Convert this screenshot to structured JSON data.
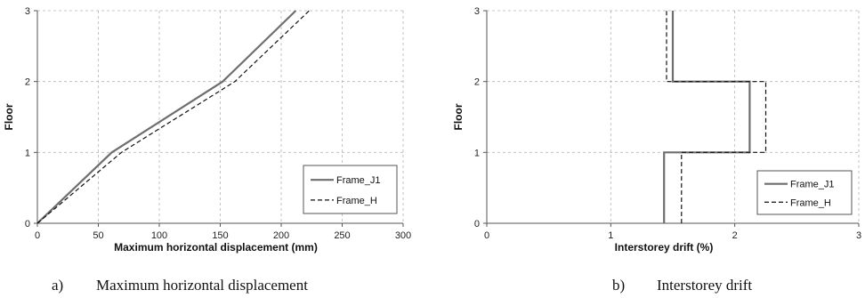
{
  "chart_data": [
    {
      "type": "line",
      "xlabel": "Maximum horizontal displacement (mm)",
      "ylabel": "Floor",
      "xlim": [
        0,
        300
      ],
      "ylim": [
        0,
        3
      ],
      "xticks": [
        0,
        50,
        100,
        150,
        200,
        250,
        300
      ],
      "yticks": [
        0,
        1,
        2,
        3
      ],
      "grid": true,
      "legend_position": "bottom-right",
      "series": [
        {
          "name": "Frame_J1",
          "style": "solid",
          "color": "#6e6e6e",
          "x": [
            0,
            61,
            152,
            212
          ],
          "y": [
            0,
            1,
            2,
            3
          ]
        },
        {
          "name": "Frame_H",
          "style": "dashed",
          "color": "#111111",
          "x": [
            0,
            69,
            162,
            223
          ],
          "y": [
            0,
            1,
            2,
            3
          ]
        }
      ],
      "caption_letter": "a)",
      "caption_text": "Maximum horizontal displacement"
    },
    {
      "type": "line",
      "xlabel": "Interstorey drift (%)",
      "ylabel": "Floor",
      "xlim": [
        0,
        3
      ],
      "ylim": [
        0,
        3
      ],
      "xticks": [
        0,
        1,
        2,
        3
      ],
      "yticks": [
        0,
        1,
        2,
        3
      ],
      "grid": true,
      "legend_position": "bottom-right",
      "series": [
        {
          "name": "Frame_J1",
          "style": "solid",
          "color": "#6e6e6e",
          "x": [
            1.43,
            1.43,
            2.12,
            2.12,
            1.5,
            1.5
          ],
          "y": [
            0,
            1,
            1,
            2,
            2,
            3
          ]
        },
        {
          "name": "Frame_H",
          "style": "dashed",
          "color": "#111111",
          "x": [
            1.57,
            1.57,
            2.25,
            2.25,
            1.45,
            1.45
          ],
          "y": [
            0,
            1,
            1,
            2,
            2,
            3
          ]
        }
      ],
      "caption_letter": "b)",
      "caption_text": "Interstorey drift"
    }
  ]
}
